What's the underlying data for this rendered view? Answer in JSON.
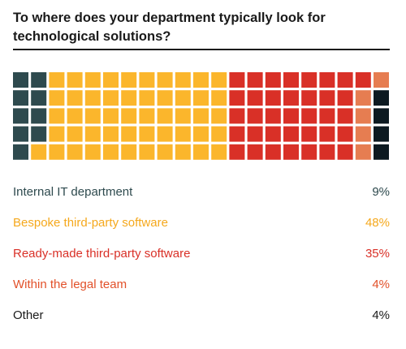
{
  "title": "To where does your department typically look for technological solutions?",
  "chart_data": {
    "type": "waffle",
    "grid": {
      "rows": 5,
      "columns": 21,
      "fill_order": "column-major, top-to-bottom, left-to-right"
    },
    "series": [
      {
        "name": "Internal IT department",
        "value_label": "9%",
        "percent": 9,
        "cells": 9,
        "color": "#2e4a4e"
      },
      {
        "name": "Bespoke third-party software",
        "value_label": "48%",
        "percent": 48,
        "cells": 51,
        "color": "#fbb62c"
      },
      {
        "name": "Ready-made third-party software",
        "value_label": "35%",
        "percent": 35,
        "cells": 36,
        "color": "#d93027"
      },
      {
        "name": "Within the legal team",
        "value_label": "4%",
        "percent": 4,
        "cells": 5,
        "color": "#e67d51"
      },
      {
        "name": "Other",
        "value_label": "4%",
        "percent": 4,
        "cells": 4,
        "color": "#0d1a21"
      }
    ],
    "label_colors": [
      "#2e4a4e",
      "#f5a81c",
      "#d93027",
      "#e2512a",
      "#1a1a1a"
    ]
  }
}
